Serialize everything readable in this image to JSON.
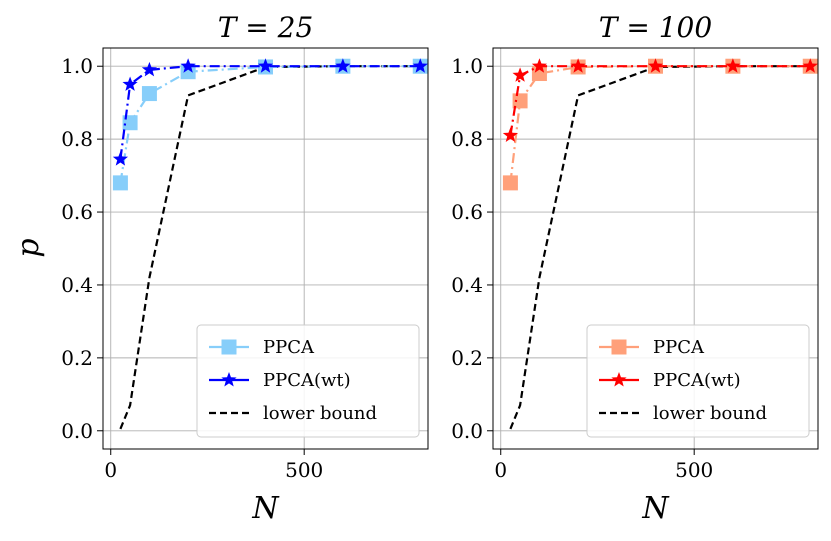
{
  "figure": {
    "ylabel": "p"
  },
  "chart_data": [
    {
      "type": "line",
      "title": "T = 25",
      "xlabel": "N",
      "ylabel": "p",
      "xlim": [
        -20,
        820
      ],
      "ylim": [
        -0.05,
        1.05
      ],
      "xticks": [
        0,
        500
      ],
      "xtick_labels": [
        "0",
        "500"
      ],
      "yticks": [
        0.0,
        0.2,
        0.4,
        0.6,
        0.8,
        1.0
      ],
      "ytick_labels": [
        "0.0",
        "0.2",
        "0.4",
        "0.6",
        "0.8",
        "1.0"
      ],
      "grid": true,
      "legend_position": "bottom-right",
      "series": [
        {
          "name": "PPCA",
          "color": "#87cefa",
          "marker": "square",
          "linestyle": "dashdot",
          "x": [
            25,
            50,
            100,
            200,
            400,
            600,
            800
          ],
          "y": [
            0.68,
            0.845,
            0.925,
            0.985,
            0.998,
            1.0,
            1.0
          ]
        },
        {
          "name": "PPCA(wt)",
          "color": "#0000ff",
          "marker": "star",
          "linestyle": "dashdot",
          "x": [
            25,
            50,
            100,
            200,
            400,
            600,
            800
          ],
          "y": [
            0.745,
            0.95,
            0.99,
            1.0,
            1.0,
            1.0,
            1.0
          ]
        },
        {
          "name": "lower bound",
          "color": "#000000",
          "marker": "none",
          "linestyle": "dashed",
          "x": [
            25,
            50,
            100,
            200,
            400,
            600,
            800
          ],
          "y": [
            0.005,
            0.07,
            0.42,
            0.92,
            0.998,
            1.0,
            1.0
          ]
        }
      ]
    },
    {
      "type": "line",
      "title": "T = 100",
      "xlabel": "N",
      "ylabel": "",
      "xlim": [
        -20,
        820
      ],
      "ylim": [
        -0.05,
        1.05
      ],
      "xticks": [
        0,
        500
      ],
      "xtick_labels": [
        "0",
        "500"
      ],
      "yticks": [
        0.0,
        0.2,
        0.4,
        0.6,
        0.8,
        1.0
      ],
      "ytick_labels": [
        "0.0",
        "0.2",
        "0.4",
        "0.6",
        "0.8",
        "1.0"
      ],
      "grid": true,
      "legend_position": "bottom-right",
      "series": [
        {
          "name": "PPCA",
          "color": "#ffa07a",
          "marker": "square",
          "linestyle": "dashdot",
          "x": [
            25,
            50,
            100,
            200,
            400,
            600,
            800
          ],
          "y": [
            0.68,
            0.905,
            0.98,
            0.998,
            1.0,
            1.0,
            1.0
          ]
        },
        {
          "name": "PPCA(wt)",
          "color": "#ff0000",
          "marker": "star",
          "linestyle": "dashdot",
          "x": [
            25,
            50,
            100,
            200,
            400,
            600,
            800
          ],
          "y": [
            0.81,
            0.975,
            1.0,
            1.0,
            1.0,
            1.0,
            1.0
          ]
        },
        {
          "name": "lower bound",
          "color": "#000000",
          "marker": "none",
          "linestyle": "dashed",
          "x": [
            25,
            50,
            100,
            200,
            400,
            600,
            800
          ],
          "y": [
            0.005,
            0.07,
            0.42,
            0.92,
            0.998,
            1.0,
            1.0
          ]
        }
      ]
    }
  ]
}
